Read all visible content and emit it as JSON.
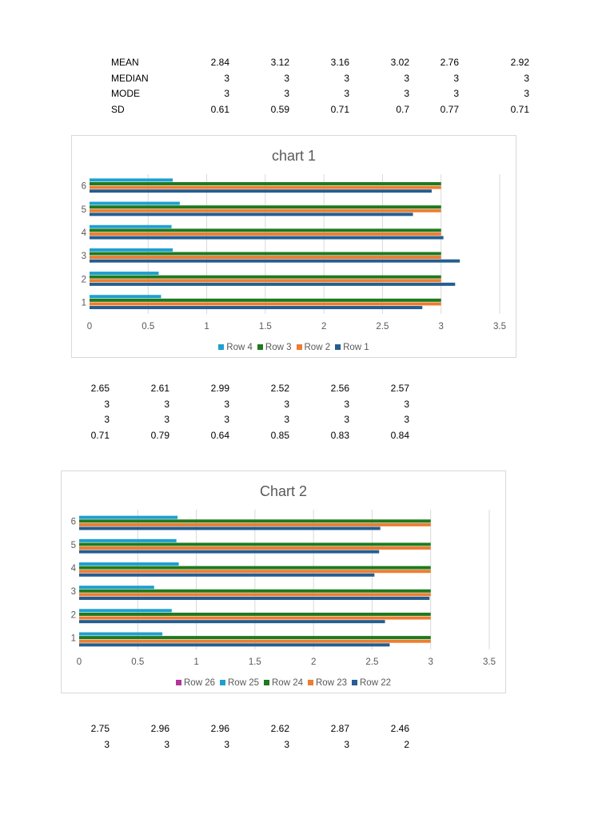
{
  "table1": {
    "rows": [
      {
        "label": "MEAN",
        "values": [
          "2.84",
          "3.12",
          "3.16",
          "3.02",
          "2.76",
          "2.92"
        ]
      },
      {
        "label": "MEDIAN",
        "values": [
          "3",
          "3",
          "3",
          "3",
          "3",
          "3"
        ]
      },
      {
        "label": "MODE",
        "values": [
          "3",
          "3",
          "3",
          "3",
          "3",
          "3"
        ]
      },
      {
        "label": "SD",
        "values": [
          "0.61",
          "0.59",
          "0.71",
          "0.7",
          "0.77",
          "0.71"
        ]
      }
    ]
  },
  "table2": {
    "rows": [
      {
        "values": [
          "2.65",
          "2.61",
          "2.99",
          "2.52",
          "2.56",
          "2.57"
        ]
      },
      {
        "values": [
          "3",
          "3",
          "3",
          "3",
          "3",
          "3"
        ]
      },
      {
        "values": [
          "3",
          "3",
          "3",
          "3",
          "3",
          "3"
        ]
      },
      {
        "values": [
          "0.71",
          "0.79",
          "0.64",
          "0.85",
          "0.83",
          "0.84"
        ]
      }
    ]
  },
  "table3": {
    "rows": [
      {
        "values": [
          "2.75",
          "2.96",
          "2.96",
          "2.62",
          "2.87",
          "2.46"
        ]
      },
      {
        "values": [
          "3",
          "3",
          "3",
          "3",
          "3",
          "2"
        ]
      }
    ]
  },
  "chart_data": [
    {
      "type": "bar",
      "orientation": "horizontal",
      "title": "chart 1",
      "categories": [
        "1",
        "2",
        "3",
        "4",
        "5",
        "6"
      ],
      "xlim": [
        0,
        3.5
      ],
      "xticks": [
        "0",
        "0.5",
        "1",
        "1.5",
        "2",
        "2.5",
        "3",
        "3.5"
      ],
      "grid": true,
      "legend_position": "bottom",
      "series": [
        {
          "name": "Row 1",
          "color": "#255e91",
          "values": [
            2.84,
            3.12,
            3.16,
            3.02,
            2.76,
            2.92
          ]
        },
        {
          "name": "Row 2",
          "color": "#ed7d31",
          "values": [
            3,
            3,
            3,
            3,
            3,
            3
          ]
        },
        {
          "name": "Row 3",
          "color": "#1e7a1e",
          "values": [
            3,
            3,
            3,
            3,
            3,
            3
          ]
        },
        {
          "name": "Row 4",
          "color": "#1f9fd0",
          "values": [
            0.61,
            0.59,
            0.71,
            0.7,
            0.77,
            0.71
          ]
        }
      ],
      "legend_order": [
        "Row 4",
        "Row 3",
        "Row 2",
        "Row 1"
      ]
    },
    {
      "type": "bar",
      "orientation": "horizontal",
      "title": "Chart 2",
      "categories": [
        "1",
        "2",
        "3",
        "4",
        "5",
        "6"
      ],
      "xlim": [
        0,
        3.5
      ],
      "xticks": [
        "0",
        "0.5",
        "1",
        "1.5",
        "2",
        "2.5",
        "3",
        "3.5"
      ],
      "grid": true,
      "legend_position": "bottom",
      "series": [
        {
          "name": "Row 22",
          "color": "#255e91",
          "values": [
            2.65,
            2.61,
            2.99,
            2.52,
            2.56,
            2.57
          ]
        },
        {
          "name": "Row 23",
          "color": "#ed7d31",
          "values": [
            3,
            3,
            3,
            3,
            3,
            3
          ]
        },
        {
          "name": "Row 24",
          "color": "#1e7a1e",
          "values": [
            3,
            3,
            3,
            3,
            3,
            3
          ]
        },
        {
          "name": "Row 25",
          "color": "#1f9fd0",
          "values": [
            0.71,
            0.79,
            0.64,
            0.85,
            0.83,
            0.84
          ]
        },
        {
          "name": "Row 26",
          "color": "#b5339f",
          "values": [
            0,
            0,
            0,
            0,
            0,
            0
          ]
        }
      ],
      "legend_order": [
        "Row 26",
        "Row 25",
        "Row 24",
        "Row 23",
        "Row 22"
      ]
    }
  ]
}
